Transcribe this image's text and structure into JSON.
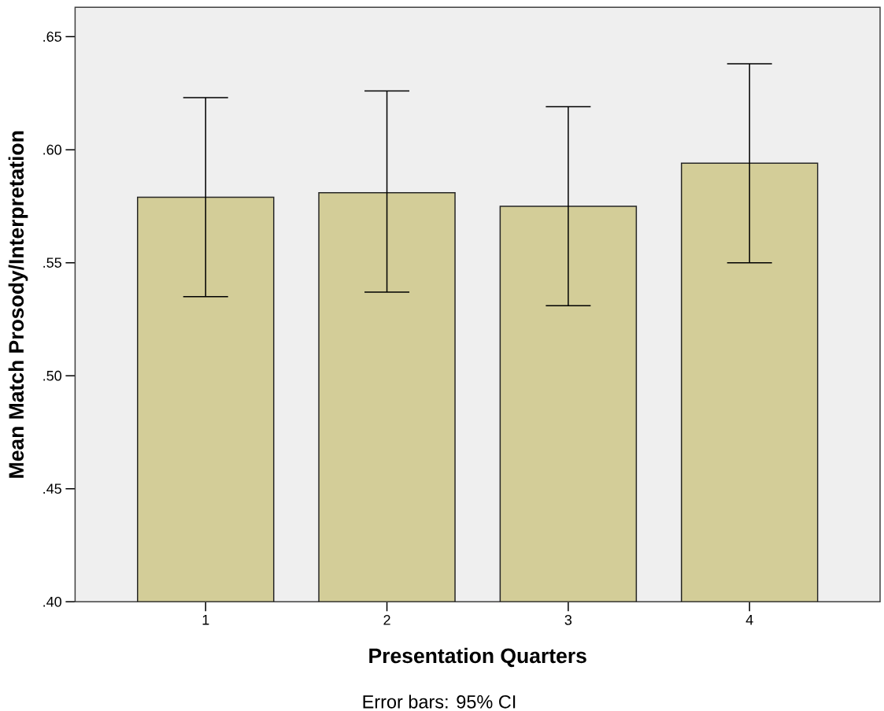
{
  "chart_data": {
    "type": "bar",
    "xlabel": "Presentation Quarters",
    "ylabel": "Mean Match Prosody/Interpretation",
    "categories": [
      "1",
      "2",
      "3",
      "4"
    ],
    "values": [
      0.579,
      0.581,
      0.575,
      0.594
    ],
    "errors": [
      [
        0.535,
        0.623
      ],
      [
        0.537,
        0.626
      ],
      [
        0.531,
        0.619
      ],
      [
        0.55,
        0.638
      ]
    ],
    "color": "#d3cd98",
    "ylim": [
      0.4,
      0.663
    ],
    "yticks": [
      {
        "value": 0.4,
        "label": ".40"
      },
      {
        "value": 0.45,
        "label": ".45"
      },
      {
        "value": 0.5,
        "label": ".50"
      },
      {
        "value": 0.55,
        "label": ".55"
      },
      {
        "value": 0.6,
        "label": ".60"
      },
      {
        "value": 0.65,
        "label": ".65"
      }
    ],
    "annotations": [
      "Error bars: 95% CI"
    ]
  }
}
